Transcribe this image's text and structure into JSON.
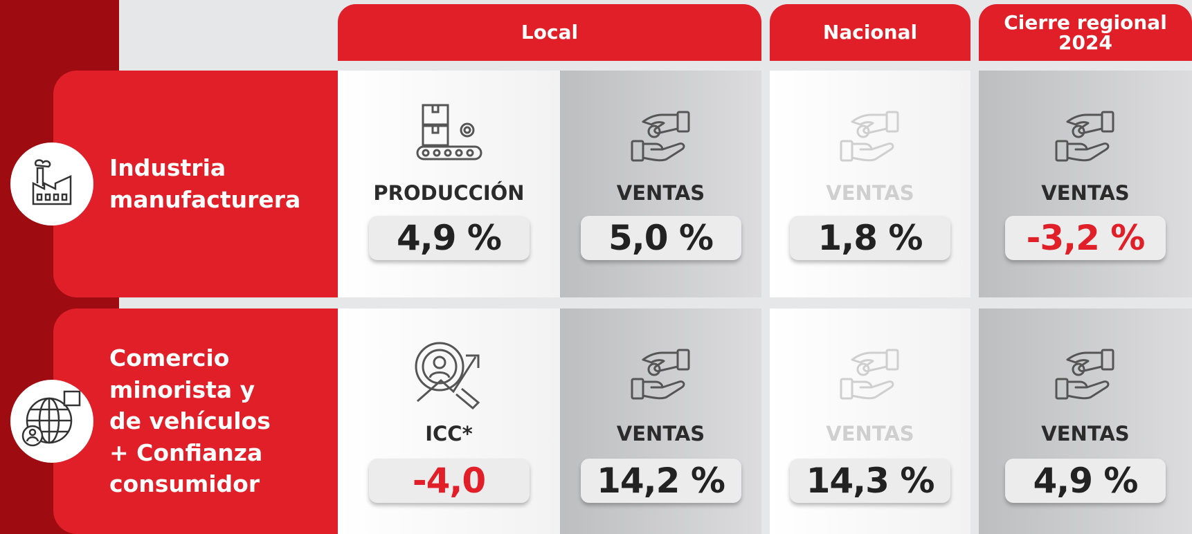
{
  "columns": [
    "Local",
    "Nacional",
    "Cierre regional 2024"
  ],
  "rows": [
    {
      "label": [
        "Industria",
        "manufacturera"
      ],
      "cells": [
        {
          "indicator": "PRODUCCIÓN",
          "value": "4,9 %"
        },
        {
          "indicator": "VENTAS",
          "value": "5,0 %"
        },
        {
          "indicator": "VENTAS",
          "value": "1,8 %"
        },
        {
          "indicator": "VENTAS",
          "value": "-3,2 %"
        }
      ]
    },
    {
      "label": [
        "Comercio",
        "minorista y",
        "de vehículos",
        "+ Confianza",
        "consumidor"
      ],
      "cells": [
        {
          "indicator": "ICC*",
          "value": "-4,0"
        },
        {
          "indicator": "VENTAS",
          "value": "14,2 %"
        },
        {
          "indicator": "VENTAS",
          "value": "14,3 %"
        },
        {
          "indicator": "VENTAS",
          "value": "4,9 %"
        }
      ]
    }
  ]
}
